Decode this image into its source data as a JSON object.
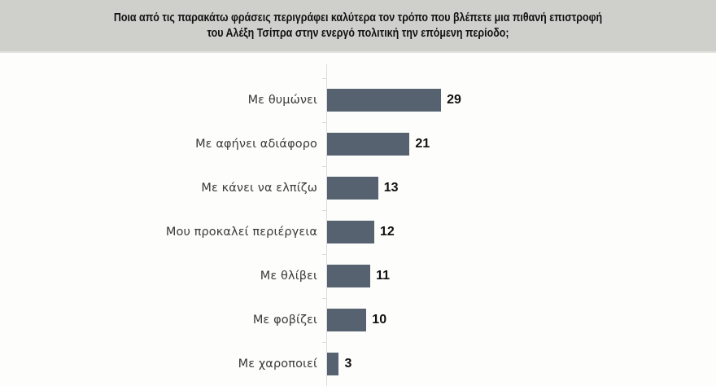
{
  "header": {
    "title": "Ποια από τις παρακάτω φράσεις περιγράφει καλύτερα τον τρόπο που βλέπετε μια πιθανή επιστροφή\nτου Αλέξη Τσίπρα στην ενεργό πολιτική την επόμενη περίοδο;"
  },
  "colors": {
    "bar": "#56626f",
    "header_bg": "#cfcfcb",
    "background": "#fdfdfb"
  },
  "chart_data": {
    "type": "bar",
    "orientation": "horizontal",
    "title": "Ποια από τις παρακάτω φράσεις περιγράφει καλύτερα τον τρόπο που βλέπετε μια πιθανή επιστροφή του Αλέξη Τσίπρα στην ενεργό πολιτική την επόμενη περίοδο;",
    "xlabel": "",
    "ylabel": "",
    "categories": [
      "Με θυμώνει",
      "Με αφήνει αδιάφορο",
      "Με κάνει να ελπίζω",
      "Μου προκαλεί περιέργεια",
      "Με θλίβει",
      "Με φοβίζει",
      "Με χαροποιεί"
    ],
    "values": [
      29,
      21,
      13,
      12,
      11,
      10,
      3
    ],
    "data_labels": true,
    "grid": false,
    "legend": null,
    "xlim": [
      0,
      35
    ]
  },
  "rows": [
    {
      "label": "Με θυμώνει",
      "value": "29"
    },
    {
      "label": "Με αφήνει αδιάφορο",
      "value": "21"
    },
    {
      "label": "Με κάνει να ελπίζω",
      "value": "13"
    },
    {
      "label": "Μου προκαλεί περιέργεια",
      "value": "12"
    },
    {
      "label": "Με θλίβει",
      "value": "11"
    },
    {
      "label": "Με φοβίζει",
      "value": "10"
    },
    {
      "label": "Με χαροποιεί",
      "value": "3"
    }
  ]
}
